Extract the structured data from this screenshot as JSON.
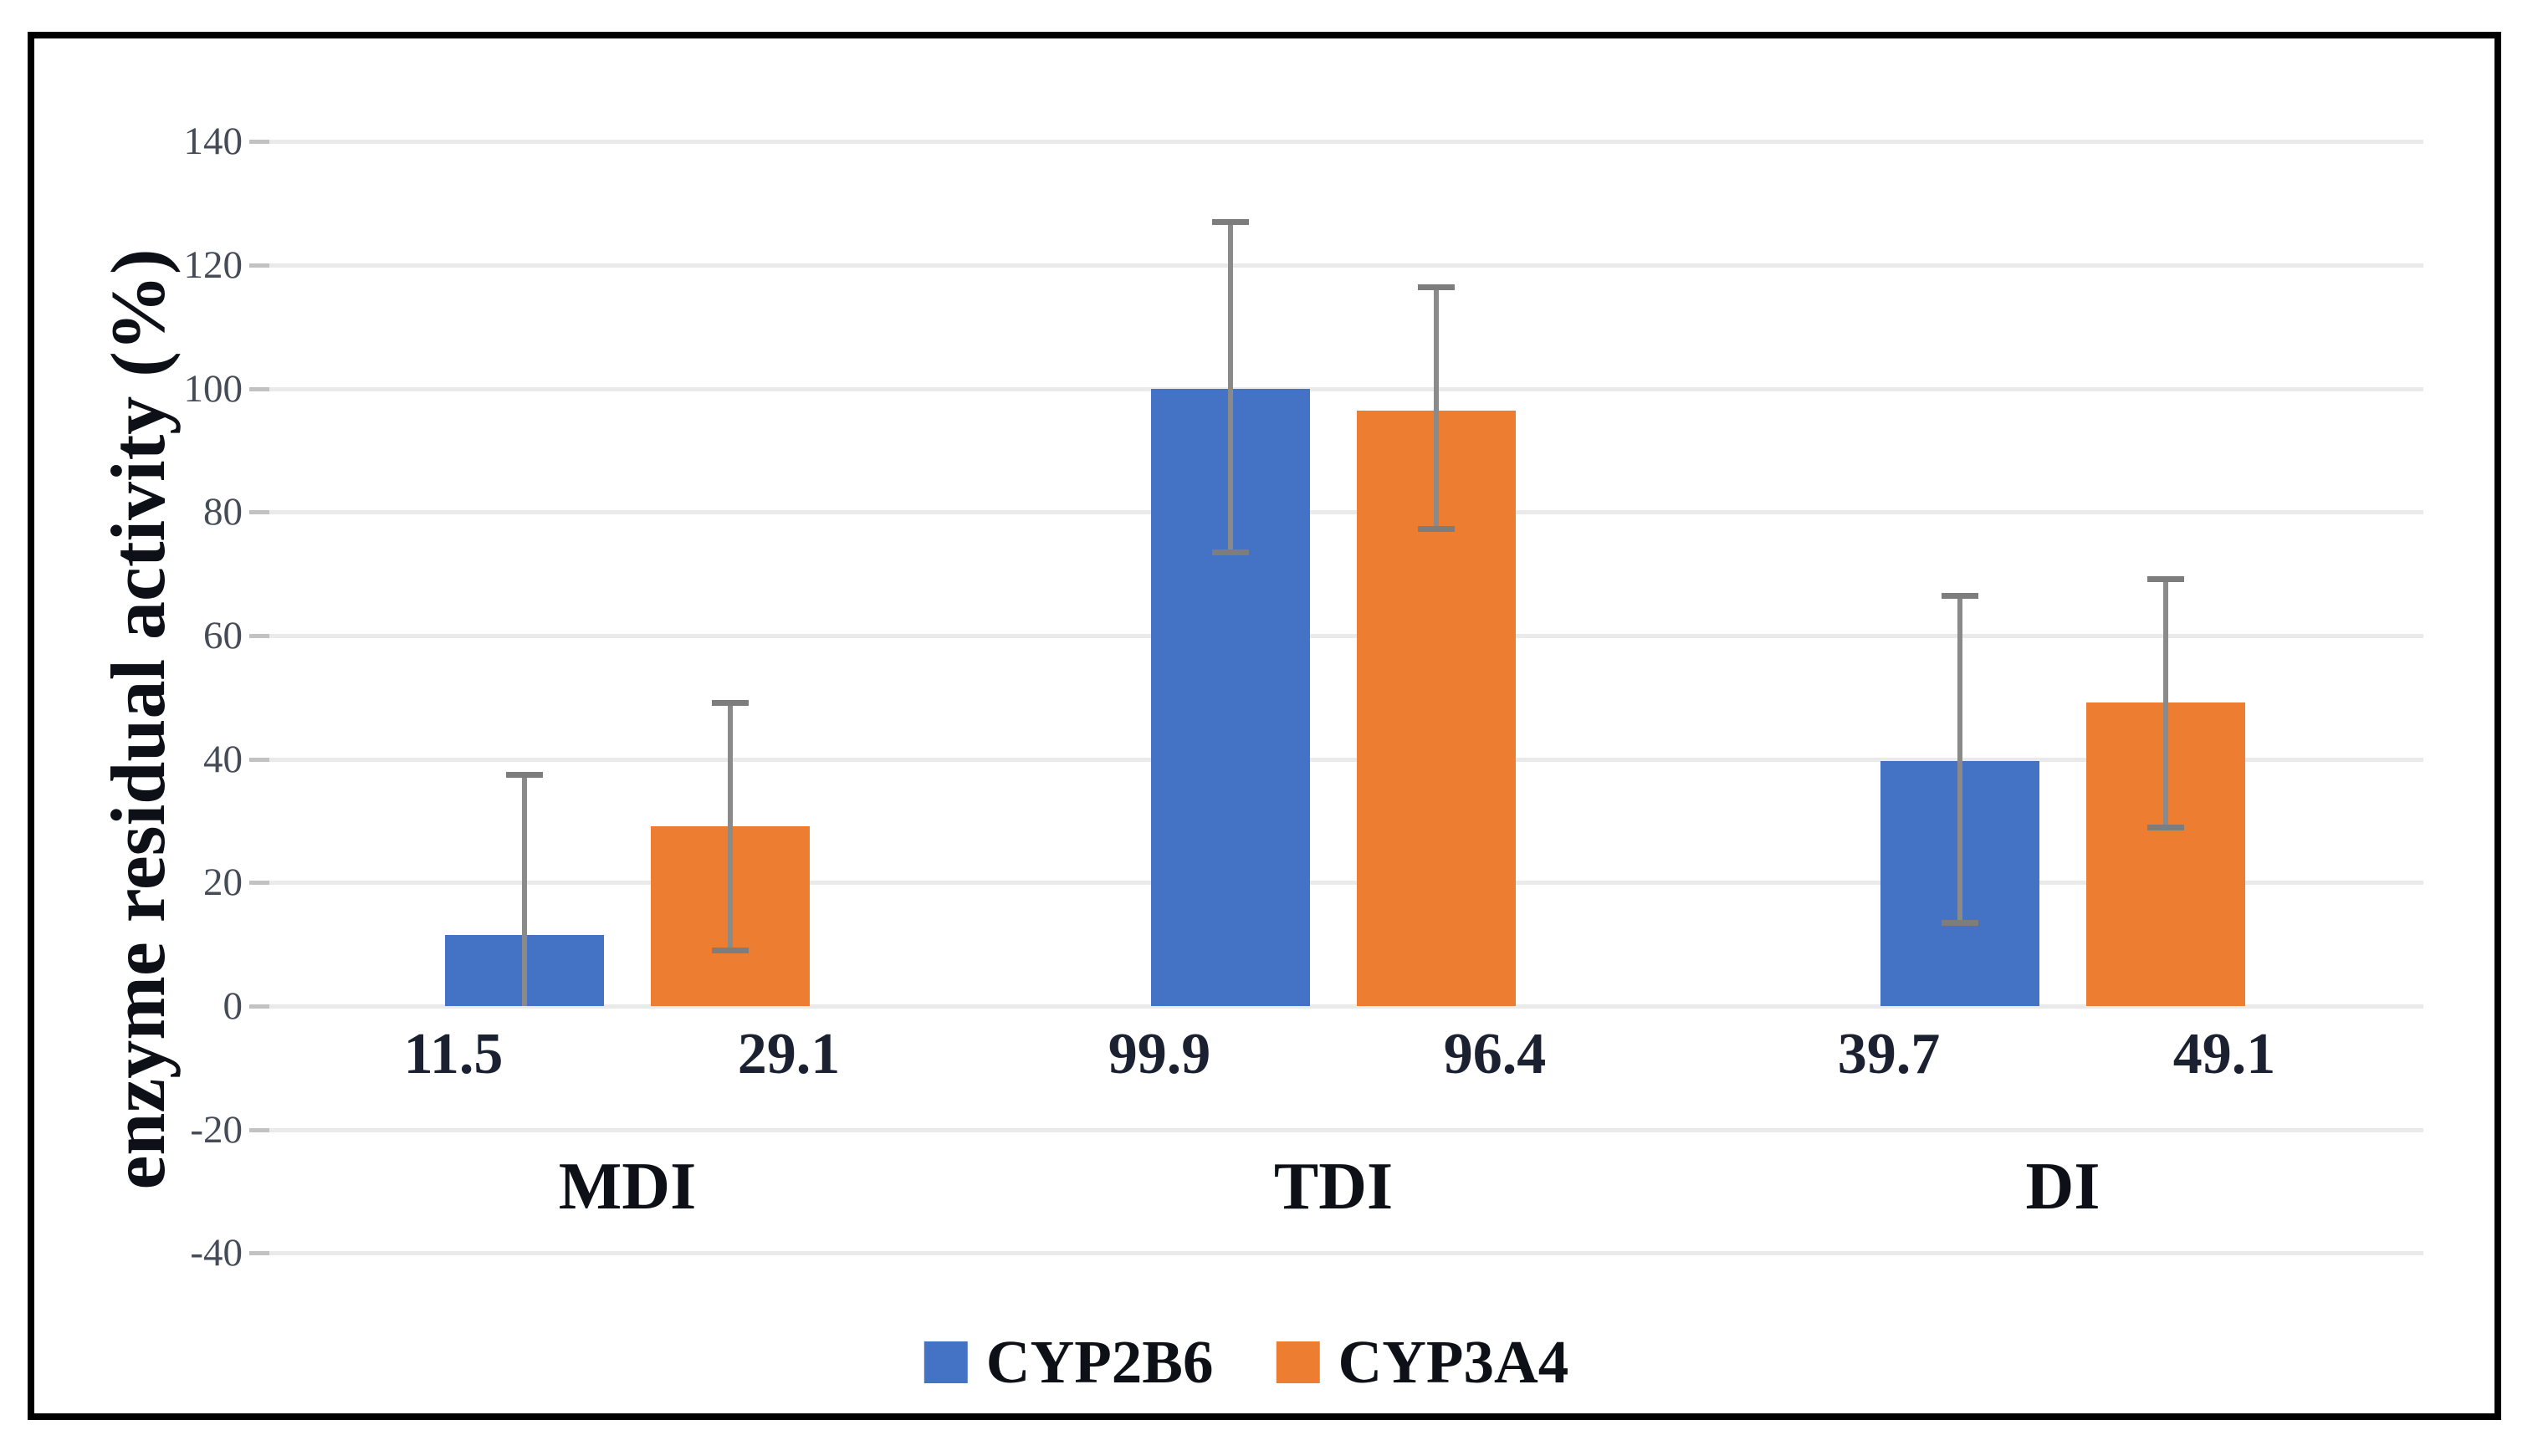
{
  "chart_data": {
    "type": "bar",
    "title": "",
    "categories": [
      "MDI",
      "TDI",
      "DI"
    ],
    "series": [
      {
        "name": "CYP2B6",
        "color": "#4472C4",
        "values": [
          11.5,
          99.9,
          39.7
        ],
        "data_labels": [
          "11.5",
          "99.9",
          "39.7"
        ],
        "error_bars": [
          {
            "high": 37.5,
            "low": 0,
            "cap_low": false
          },
          {
            "high": 127,
            "low": 73.5,
            "cap_low": true
          },
          {
            "high": 66.5,
            "low": 13.5,
            "cap_low": true
          }
        ]
      },
      {
        "name": "CYP3A4",
        "color": "#ED7D31",
        "values": [
          29.1,
          96.4,
          49.1
        ],
        "data_labels": [
          "29.1",
          "96.4",
          "49.1"
        ],
        "error_bars": [
          {
            "high": 49.2,
            "low": 9.1,
            "cap_low": true
          },
          {
            "high": 116.5,
            "low": 77.3,
            "cap_low": true
          },
          {
            "high": 69.2,
            "low": 29.0,
            "cap_low": true
          }
        ]
      }
    ],
    "xlabel": "",
    "ylabel": "enzyme residual activity (%)",
    "ylim": [
      -40,
      140
    ],
    "yticks": [
      140,
      120,
      100,
      80,
      60,
      40,
      20,
      0,
      -20,
      -40
    ],
    "grid": true,
    "legend_position": "bottom",
    "error_bar_color": "#8a8a8a",
    "grid_color": "#eaeaea",
    "frame_color": "#000000"
  }
}
